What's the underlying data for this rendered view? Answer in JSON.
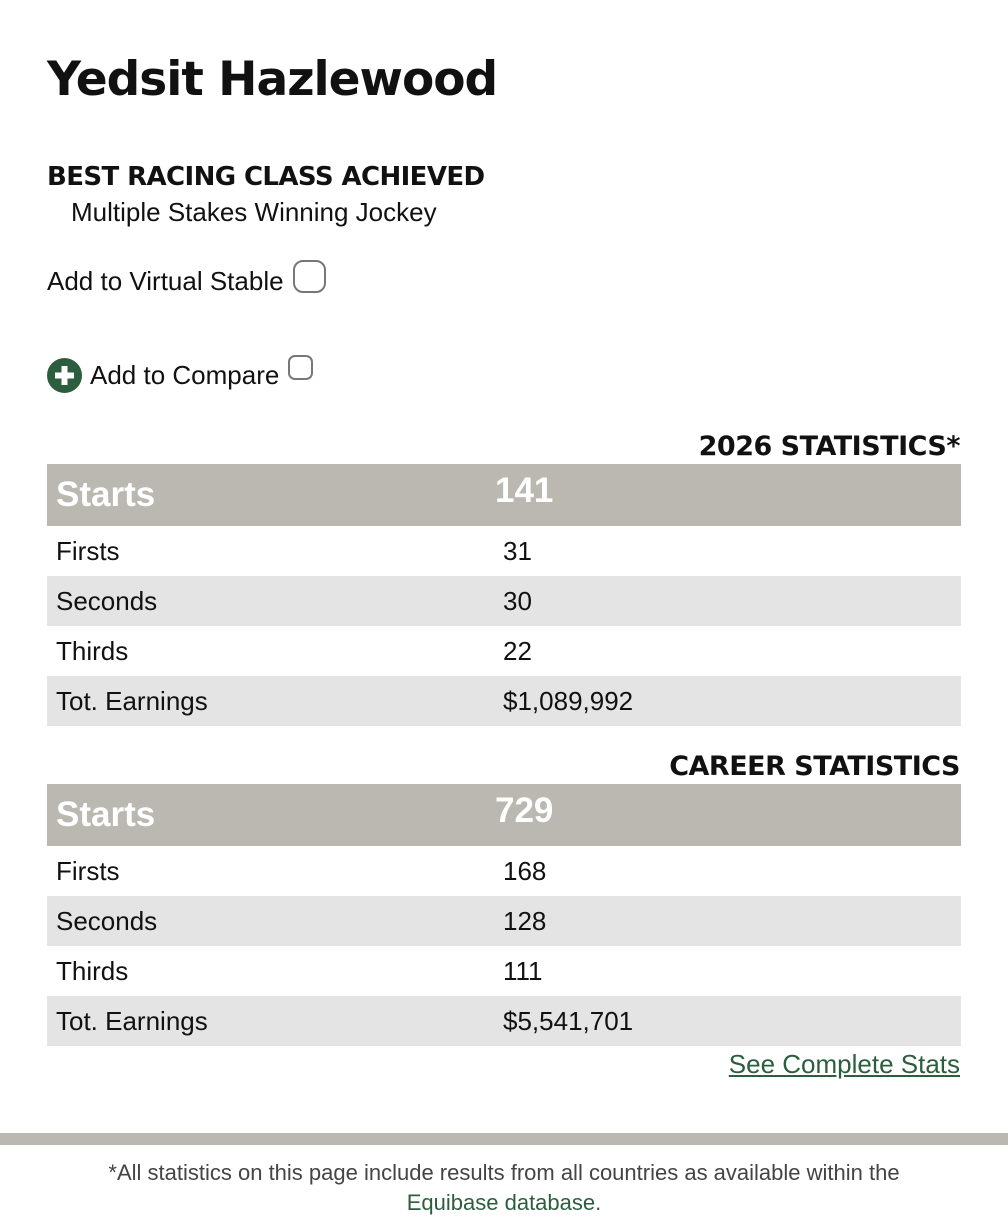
{
  "profile": {
    "name": "Yedsit Hazlewood",
    "best_class_heading": "BEST RACING CLASS ACHIEVED",
    "best_class_value": "Multiple Stakes Winning Jockey"
  },
  "actions": {
    "virtual_stable_label": "Add to Virtual Stable",
    "virtual_stable_checked": false,
    "compare_label": "Add to Compare",
    "compare_checked": false,
    "compare_icon": "plus-circle-icon"
  },
  "season_stats": {
    "title": "2026 STATISTICS*",
    "header": {
      "label": "Starts",
      "value": "141"
    },
    "rows": [
      {
        "label": "Firsts",
        "value": "31"
      },
      {
        "label": "Seconds",
        "value": "30"
      },
      {
        "label": "Thirds",
        "value": "22"
      },
      {
        "label": "Tot. Earnings",
        "value": "$1,089,992"
      }
    ]
  },
  "career_stats": {
    "title": "CAREER STATISTICS",
    "header": {
      "label": "Starts",
      "value": "729"
    },
    "rows": [
      {
        "label": "Firsts",
        "value": "168"
      },
      {
        "label": "Seconds",
        "value": "128"
      },
      {
        "label": "Thirds",
        "value": "111"
      },
      {
        "label": "Tot. Earnings",
        "value": "$5,541,701"
      }
    ]
  },
  "links": {
    "see_complete_stats": "See Complete Stats"
  },
  "footer": {
    "note_line1": "*All statistics on this page include results from all countries as available within the",
    "note_line2": "Equibase database."
  },
  "colors": {
    "table_header_bg": "#bab8b0",
    "row_alt_bg": "#e4e4e4",
    "accent_green": "#2c5e3e"
  }
}
